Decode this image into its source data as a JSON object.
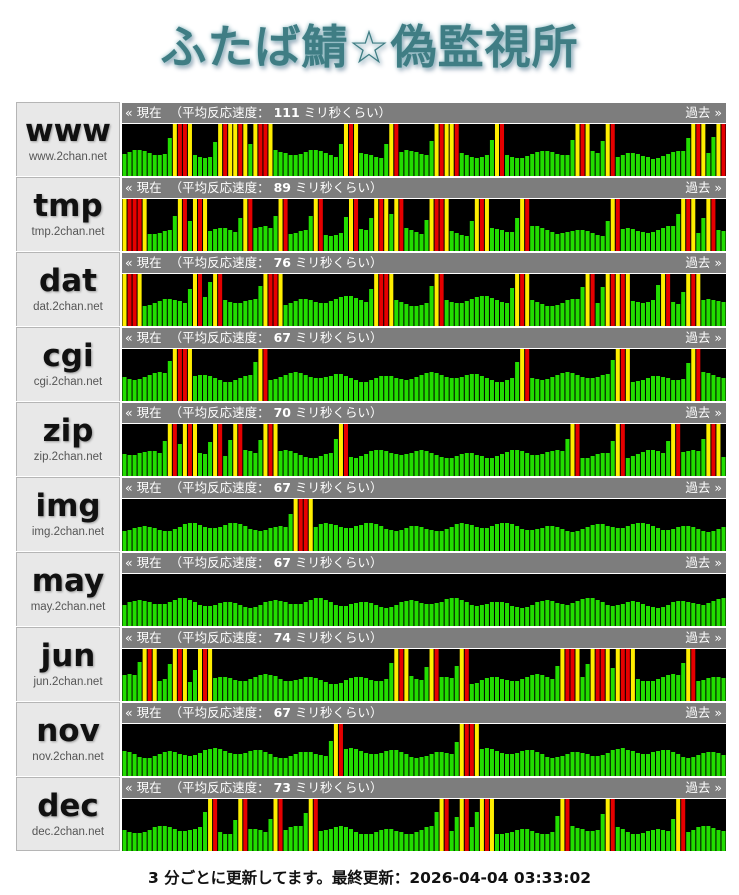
{
  "page_title": "ふたば鯖☆偽監視所",
  "colors": {
    "ok": "#22dd00",
    "warn": "#ffee00",
    "bad": "#e60000",
    "bar_bg": "#000000",
    "header_bg": "#7d7d7d"
  },
  "header_labels": {
    "now": "« 現在",
    "avg_prefix": "（平均反応速度：",
    "avg_unit": "ミリ秒くらい）",
    "past": "過去 »"
  },
  "servers": [
    {
      "name": "www",
      "host": "www.2chan.net",
      "avg_ms": "111"
    },
    {
      "name": "tmp",
      "host": "tmp.2chan.net",
      "avg_ms": "89"
    },
    {
      "name": "dat",
      "host": "dat.2chan.net",
      "avg_ms": "76"
    },
    {
      "name": "cgi",
      "host": "cgi.2chan.net",
      "avg_ms": "67"
    },
    {
      "name": "zip",
      "host": "zip.2chan.net",
      "avg_ms": "70"
    },
    {
      "name": "img",
      "host": "img.2chan.net",
      "avg_ms": "67"
    },
    {
      "name": "may",
      "host": "may.2chan.net",
      "avg_ms": "67"
    },
    {
      "name": "jun",
      "host": "jun.2chan.net",
      "avg_ms": "74"
    },
    {
      "name": "nov",
      "host": "nov.2chan.net",
      "avg_ms": "67"
    },
    {
      "name": "dec",
      "host": "dec.2chan.net",
      "avg_ms": "73"
    }
  ],
  "footer": {
    "text": "3 分ごとに更新してます。最終更新：2026-04-04 03:33:02"
  }
}
